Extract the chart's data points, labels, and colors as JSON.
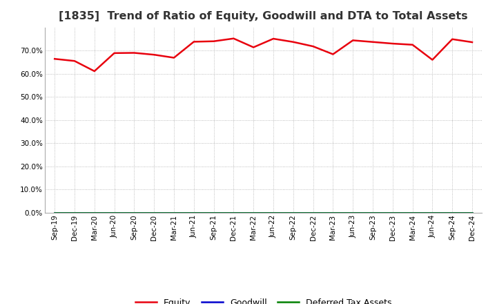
{
  "title": "[1835]  Trend of Ratio of Equity, Goodwill and DTA to Total Assets",
  "x_labels": [
    "Sep-19",
    "Dec-19",
    "Mar-20",
    "Jun-20",
    "Sep-20",
    "Dec-20",
    "Mar-21",
    "Jun-21",
    "Sep-21",
    "Dec-21",
    "Mar-22",
    "Jun-22",
    "Sep-22",
    "Dec-22",
    "Mar-23",
    "Jun-23",
    "Sep-23",
    "Dec-23",
    "Mar-24",
    "Jun-24",
    "Sep-24",
    "Dec-24"
  ],
  "equity": [
    0.664,
    0.655,
    0.611,
    0.689,
    0.69,
    0.682,
    0.669,
    0.738,
    0.74,
    0.752,
    0.714,
    0.751,
    0.737,
    0.718,
    0.684,
    0.744,
    0.737,
    0.73,
    0.725,
    0.66,
    0.749,
    0.736
  ],
  "goodwill": [
    0.0,
    0.0,
    0.0,
    0.0,
    0.0,
    0.0,
    0.0,
    0.0,
    0.0,
    0.0,
    0.0,
    0.0,
    0.0,
    0.0,
    0.0,
    0.0,
    0.0,
    0.0,
    0.0,
    0.0,
    0.0,
    0.0
  ],
  "dta": [
    0.0,
    0.0,
    0.0,
    0.0,
    0.0,
    0.0,
    0.0,
    0.0,
    0.0,
    0.0,
    0.0,
    0.0,
    0.0,
    0.0,
    0.0,
    0.0,
    0.0,
    0.0,
    0.0,
    0.0,
    0.0,
    0.0
  ],
  "equity_color": "#e8000d",
  "goodwill_color": "#0000cd",
  "dta_color": "#008000",
  "ylim": [
    0.0,
    0.8
  ],
  "yticks": [
    0.0,
    0.1,
    0.2,
    0.3,
    0.4,
    0.5,
    0.6,
    0.7
  ],
  "background_color": "#ffffff",
  "plot_bg_color": "#ffffff",
  "grid_color": "#aaaaaa",
  "legend_labels": [
    "Equity",
    "Goodwill",
    "Deferred Tax Assets"
  ],
  "title_fontsize": 11.5,
  "tick_fontsize": 7.5,
  "legend_fontsize": 9.0
}
